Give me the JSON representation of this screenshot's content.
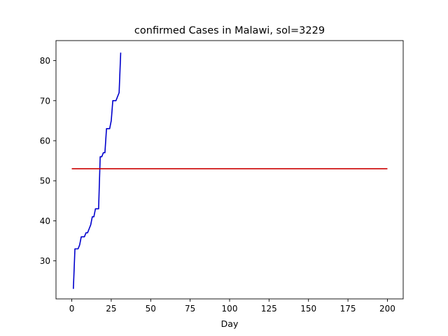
{
  "chart_data": {
    "type": "line",
    "title": "confirmed Cases in Malawi, sol=3229",
    "xlabel": "Day",
    "ylabel": "",
    "xlim": [
      -10,
      210
    ],
    "ylim": [
      20.5,
      85
    ],
    "xticks": [
      0,
      25,
      50,
      75,
      100,
      125,
      150,
      175,
      200
    ],
    "yticks": [
      30,
      40,
      50,
      60,
      70,
      80
    ],
    "grid": false,
    "series": [
      {
        "color": "#0000cc",
        "x": [
          1,
          2,
          3,
          4,
          5,
          6,
          7,
          8,
          9,
          10,
          11,
          12,
          13,
          14,
          15,
          16,
          17,
          18,
          19,
          20,
          21,
          22,
          23,
          24,
          25,
          26,
          27,
          28,
          29,
          30,
          31
        ],
        "y": [
          23,
          33,
          33,
          33,
          34,
          36,
          36,
          36,
          37,
          37,
          38,
          39,
          41,
          41,
          43,
          43,
          43,
          56,
          56,
          57,
          57,
          63,
          63,
          63,
          65,
          70,
          70,
          70,
          71,
          72,
          82
        ]
      },
      {
        "color": "#cc0000",
        "x": [
          0,
          200
        ],
        "y": [
          53,
          53
        ]
      }
    ]
  }
}
